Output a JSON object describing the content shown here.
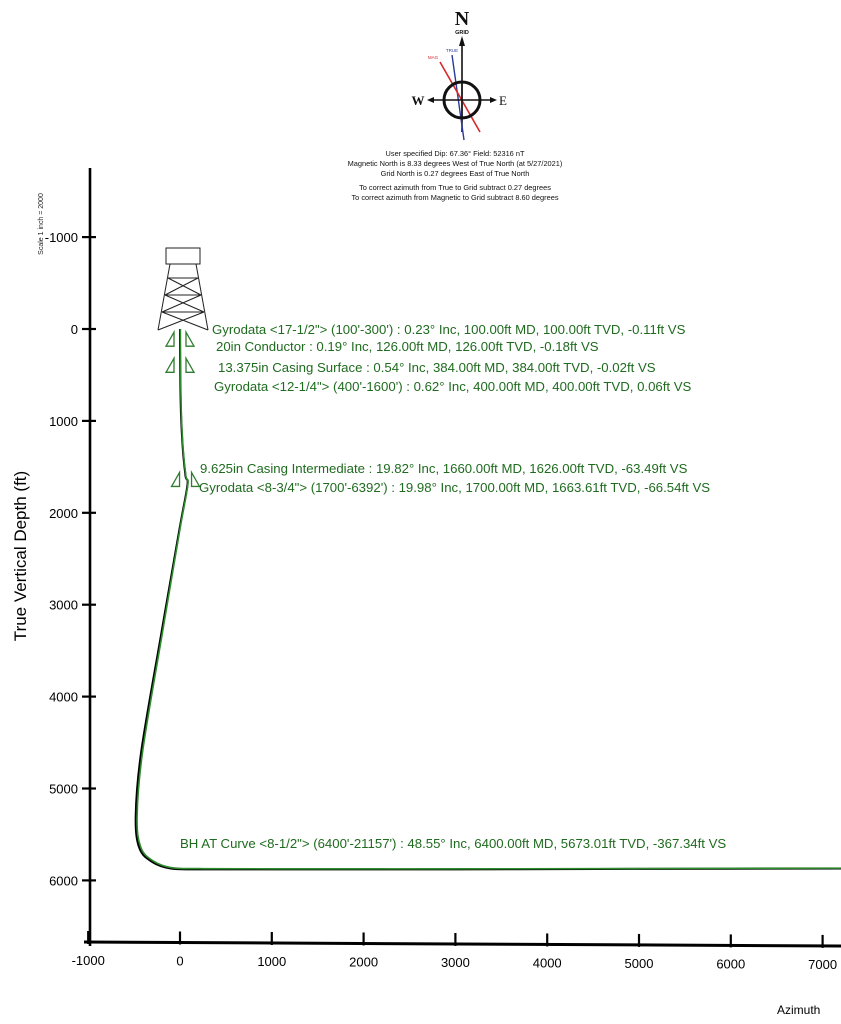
{
  "chart_data": {
    "type": "line",
    "ylabel": "True Vertical Depth (ft)",
    "xlabel": "Azimuth",
    "scale_note": "Scale 1 inch = 2000",
    "xlim": [
      -1000,
      7000
    ],
    "ylim": [
      6800,
      -1800
    ],
    "x_ticks": [
      -1000,
      0,
      1000,
      2000,
      3000,
      4000,
      5000,
      6000,
      7000
    ],
    "x_tick_labels": [
      "-1000",
      "0",
      "1000",
      "2000",
      "3000",
      "4000",
      "5000",
      "6000",
      "7000"
    ],
    "y_ticks": [
      -1000,
      0,
      1000,
      2000,
      3000,
      4000,
      5000,
      6000
    ],
    "y_tick_labels": [
      "-1000",
      "0",
      "1000",
      "2000",
      "3000",
      "4000",
      "5000",
      "6000"
    ],
    "series": [
      {
        "color": "#000000",
        "x": [
          0,
          2,
          10,
          30,
          60,
          80,
          -10,
          -200,
          -420,
          -480,
          -440,
          -300,
          -100,
          200,
          1000,
          3000,
          5000,
          7300
        ],
        "y": [
          0,
          400,
          900,
          1300,
          1600,
          1700,
          2200,
          3300,
          4600,
          5300,
          5650,
          5800,
          5870,
          5880,
          5880,
          5880,
          5875,
          5870
        ]
      },
      {
        "color": "#2e8b2e",
        "x": [
          4,
          6,
          14,
          34,
          64,
          84,
          -4,
          -190,
          -405,
          -465,
          -425,
          -288,
          -90,
          210,
          1010,
          3010,
          5010,
          7300
        ],
        "y": [
          0,
          400,
          900,
          1300,
          1600,
          1700,
          2200,
          3300,
          4600,
          5300,
          5640,
          5790,
          5862,
          5872,
          5874,
          5874,
          5870,
          5866
        ]
      }
    ],
    "annotations": [
      {
        "text": "Gyrodata <17-1/2\"> (100'-300') : 0.23° Inc, 100.00ft MD, 100.00ft TVD, -0.11ft VS",
        "x": 330,
        "y": 40
      },
      {
        "text": "20in Conductor : 0.19° Inc, 126.00ft MD, 126.00ft TVD, -0.18ft VS",
        "x": 360,
        "y": 205
      },
      {
        "text": "13.375in Casing Surface : 0.54° Inc, 384.00ft MD, 384.00ft TVD, -0.02ft VS",
        "x": 380,
        "y": 435
      },
      {
        "text": "Gyrodata <12-1/4\"> (400'-1600') : 0.62° Inc, 400.00ft MD, 400.00ft TVD, 0.06ft VS",
        "x": 380,
        "y": 645
      },
      {
        "text": "9.625in Casing Intermediate : 19.82° Inc, 1660.00ft MD, 1626.00ft TVD, -63.49ft VS",
        "x": 230,
        "y": 1530
      },
      {
        "text": "Gyrodata <8-3/4\"> (1700'-6392') : 19.98° Inc, 1700.00ft MD, 1663.61ft TVD, -66.54ft VS",
        "x": 520,
        "y": 1720
      },
      {
        "text": "BH AT Curve <8-1/2\"> (6400'-21157') : 48.55° Inc, 6400.00ft MD, 5673.01ft TVD, -367.34ft VS",
        "x": 0,
        "y": 5600
      }
    ],
    "casing_markers": [
      {
        "x": 0,
        "y": 100
      },
      {
        "x": 0,
        "y": 384
      },
      {
        "x": 60,
        "y": 1626
      }
    ],
    "grid": false
  },
  "compass": {
    "north_label": "N",
    "grid_label": "GRID",
    "west_label": "W",
    "east_label": "E",
    "true_label": "TRUE",
    "mag_label": "MAG",
    "lines": [
      "User specified Dip: 67.36°  Field: 52316 nT",
      "Magnetic North is 8.33 degrees West of True North (at 5/27/2021)",
      "Grid North is 0.27 degrees East of True North",
      "To correct azimuth from True to Grid subtract 0.27 degrees",
      "To correct azimuth from Magnetic to Grid subtract 8.60 degrees"
    ]
  }
}
